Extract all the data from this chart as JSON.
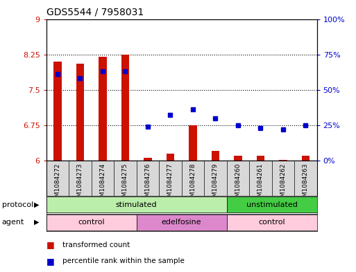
{
  "title": "GDS5544 / 7958031",
  "samples": [
    "GSM1084272",
    "GSM1084273",
    "GSM1084274",
    "GSM1084275",
    "GSM1084276",
    "GSM1084277",
    "GSM1084278",
    "GSM1084279",
    "GSM1084260",
    "GSM1084261",
    "GSM1084262",
    "GSM1084263"
  ],
  "transformed_count": [
    8.1,
    8.05,
    8.2,
    8.25,
    6.05,
    6.15,
    6.75,
    6.2,
    6.1,
    6.1,
    6.02,
    6.1
  ],
  "percentile_rank": [
    61,
    58,
    63,
    63,
    24,
    32,
    36,
    30,
    25,
    23,
    22,
    25
  ],
  "ylim_left": [
    6,
    9
  ],
  "ylim_right": [
    0,
    100
  ],
  "yticks_left": [
    6,
    6.75,
    7.5,
    8.25,
    9
  ],
  "yticks_right": [
    0,
    25,
    50,
    75,
    100
  ],
  "ytick_labels_left": [
    "6",
    "6.75",
    "7.5",
    "8.25",
    "9"
  ],
  "ytick_labels_right": [
    "0%",
    "25%",
    "50%",
    "75%",
    "100%"
  ],
  "hlines": [
    6.75,
    7.5,
    8.25
  ],
  "bar_color": "#cc1100",
  "dot_color": "#0000cc",
  "protocol_labels": [
    {
      "text": "stimulated",
      "start": 0,
      "end": 7,
      "color": "#bbeeaa"
    },
    {
      "text": "unstimulated",
      "start": 8,
      "end": 11,
      "color": "#44cc44"
    }
  ],
  "agent_labels": [
    {
      "text": "control",
      "start": 0,
      "end": 3,
      "color": "#ffccdd"
    },
    {
      "text": "edelfosine",
      "start": 4,
      "end": 7,
      "color": "#dd88cc"
    },
    {
      "text": "control",
      "start": 8,
      "end": 11,
      "color": "#ffccdd"
    }
  ],
  "protocol_row_label": "protocol",
  "agent_row_label": "agent",
  "legend_items": [
    {
      "label": "transformed count",
      "color": "#cc1100"
    },
    {
      "label": "percentile rank within the sample",
      "color": "#0000cc"
    }
  ],
  "sample_bg_color": "#d8d8d8",
  "bar_bottom": 6
}
